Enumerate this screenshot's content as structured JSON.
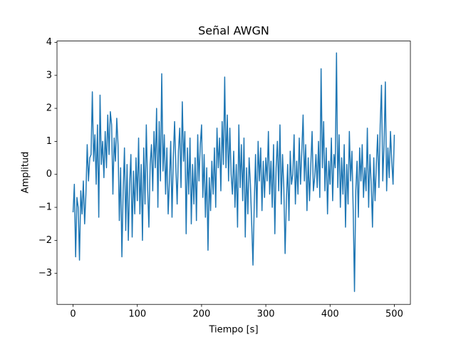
{
  "chart_data": {
    "type": "line",
    "title": "Señal AWGN",
    "xlabel": "Tiempo [s]",
    "ylabel": "Amplitud",
    "color": "#1f77b4",
    "xlim": [
      -25,
      525
    ],
    "ylim": [
      -3.94,
      4.04
    ],
    "xticks": [
      0,
      100,
      200,
      300,
      400,
      500
    ],
    "yticks": [
      {
        "value": -3,
        "label": "−3"
      },
      {
        "value": -2,
        "label": "−2"
      },
      {
        "value": -1,
        "label": "−1"
      },
      0,
      1,
      2,
      3,
      4
    ],
    "x": [
      0,
      2,
      4,
      6,
      8,
      10,
      12,
      14,
      16,
      18,
      20,
      22,
      24,
      26,
      28,
      30,
      32,
      34,
      36,
      38,
      40,
      42,
      44,
      46,
      48,
      50,
      52,
      54,
      56,
      58,
      60,
      62,
      64,
      66,
      68,
      70,
      72,
      74,
      76,
      78,
      80,
      82,
      84,
      86,
      88,
      90,
      92,
      94,
      96,
      98,
      100,
      102,
      104,
      106,
      108,
      110,
      112,
      114,
      116,
      118,
      120,
      122,
      124,
      126,
      128,
      130,
      132,
      134,
      136,
      138,
      140,
      142,
      144,
      146,
      148,
      150,
      152,
      154,
      156,
      158,
      160,
      162,
      164,
      166,
      168,
      170,
      172,
      174,
      176,
      178,
      180,
      182,
      184,
      186,
      188,
      190,
      192,
      194,
      196,
      198,
      200,
      202,
      204,
      206,
      208,
      210,
      212,
      214,
      216,
      218,
      220,
      222,
      224,
      226,
      228,
      230,
      232,
      234,
      236,
      238,
      240,
      242,
      244,
      246,
      248,
      250,
      252,
      254,
      256,
      258,
      260,
      262,
      264,
      266,
      268,
      270,
      272,
      274,
      276,
      278,
      280,
      282,
      284,
      286,
      288,
      290,
      292,
      294,
      296,
      298,
      300,
      302,
      304,
      306,
      308,
      310,
      312,
      314,
      316,
      318,
      320,
      322,
      324,
      326,
      328,
      330,
      332,
      334,
      336,
      338,
      340,
      342,
      344,
      346,
      348,
      350,
      352,
      354,
      356,
      358,
      360,
      362,
      364,
      366,
      368,
      370,
      372,
      374,
      376,
      378,
      380,
      382,
      384,
      386,
      388,
      390,
      392,
      394,
      396,
      398,
      400,
      402,
      404,
      406,
      408,
      410,
      412,
      414,
      416,
      418,
      420,
      422,
      424,
      426,
      428,
      430,
      432,
      434,
      436,
      438,
      440,
      442,
      444,
      446,
      448,
      450,
      452,
      454,
      456,
      458,
      460,
      462,
      464,
      466,
      468,
      470,
      472,
      474,
      476,
      478,
      480,
      482,
      484,
      486,
      488,
      490,
      492,
      494,
      496,
      498,
      500
    ],
    "values": [
      -1.15,
      -0.3,
      -2.5,
      -0.7,
      -1.0,
      -2.6,
      -0.5,
      -1.2,
      -0.2,
      -1.5,
      -0.6,
      0.9,
      -0.2,
      0.5,
      0.6,
      2.5,
      0.4,
      1.2,
      -0.3,
      1.5,
      -1.3,
      2.4,
      0.3,
      1.0,
      -0.1,
      1.3,
      0.2,
      1.8,
      0.6,
      1.9,
      1.5,
      -0.6,
      1.1,
      0.4,
      1.7,
      0.9,
      -1.4,
      0.2,
      -2.5,
      -0.5,
      0.8,
      -1.7,
      0.3,
      -2.0,
      -0.3,
      0.6,
      -1.9,
      0.1,
      -1.2,
      0.5,
      -0.8,
      1.1,
      -1.2,
      0.3,
      -2.0,
      0.8,
      -0.9,
      1.5,
      -0.4,
      -1.6,
      0.3,
      0.9,
      -0.5,
      1.3,
      0.2,
      2.0,
      -1.0,
      1.6,
      -0.2,
      3.05,
      0.1,
      1.2,
      -0.6,
      0.8,
      -1.2,
      -0.2,
      1.0,
      -1.3,
      0.5,
      1.6,
      0.2,
      -0.9,
      0.7,
      1.4,
      -0.4,
      2.2,
      0.4,
      1.3,
      -1.8,
      0.8,
      -0.6,
      1.1,
      -1.5,
      0.3,
      -0.9,
      0.5,
      -1.4,
      1.2,
      -0.2,
      0.9,
      1.5,
      -0.7,
      0.6,
      -1.3,
      0.2,
      -2.3,
      -0.1,
      -1.1,
      0.4,
      -0.6,
      0.8,
      -1.0,
      1.4,
      0.2,
      1.1,
      -0.5,
      1.6,
      0.3,
      2.95,
      0.2,
      1.8,
      -0.2,
      1.4,
      0.0,
      -0.6,
      0.7,
      -1.0,
      0.3,
      -1.6,
      1.5,
      -0.4,
      0.9,
      -0.8,
      1.1,
      -1.9,
      0.2,
      -1.2,
      0.5,
      -0.3,
      -1.5,
      -2.75,
      -0.9,
      0.6,
      -1.3,
      1.0,
      -0.2,
      0.8,
      -1.1,
      0.4,
      -0.7,
      0.5,
      -0.2,
      1.3,
      -0.6,
      0.4,
      -1.0,
      0.9,
      -1.8,
      0.2,
      1.0,
      -0.5,
      1.5,
      -0.9,
      0.6,
      -0.4,
      -2.4,
      -0.8,
      0.3,
      -1.4,
      0.7,
      -0.3,
      0.0,
      1.2,
      -0.9,
      0.4,
      -0.6,
      1.1,
      -0.3,
      0.7,
      1.8,
      -0.2,
      0.9,
      -1.1,
      0.5,
      -0.8,
      0.3,
      1.3,
      -0.5,
      -0.1,
      0.6,
      -0.4,
      1.0,
      -0.7,
      3.2,
      0.2,
      1.6,
      -0.5,
      0.8,
      -1.2,
      0.4,
      -0.3,
      1.1,
      -0.8,
      0.6,
      0.2,
      3.68,
      -0.4,
      1.2,
      -1.0,
      0.5,
      -0.6,
      0.9,
      -1.6,
      0.3,
      -0.9,
      1.3,
      -0.2,
      0.7,
      -1.1,
      -3.55,
      -0.5,
      0.4,
      -1.3,
      0.8,
      -0.2,
      0.9,
      -0.7,
      0.2,
      -0.5,
      1.4,
      -1.0,
      0.6,
      -0.3,
      -1.6,
      0.5,
      -0.8,
      0.3,
      1.2,
      -0.4,
      1.5,
      2.7,
      -0.2,
      0.9,
      2.8,
      -0.5,
      0.8,
      -0.1,
      1.3,
      0.4,
      -0.3,
      1.2
    ]
  }
}
